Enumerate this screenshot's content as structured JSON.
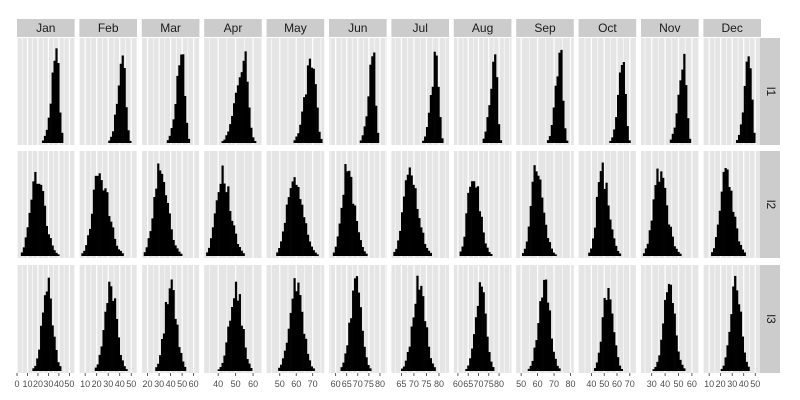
{
  "chart_data": {
    "type": "histogram-facet-grid",
    "title": "",
    "xlabel": "",
    "ylabel": "",
    "columns": [
      "Jan",
      "Feb",
      "Mar",
      "Apr",
      "May",
      "Jun",
      "Jul",
      "Aug",
      "Sep",
      "Oct",
      "Nov",
      "Dec"
    ],
    "rows": [
      "l1",
      "l2",
      "l3"
    ],
    "x_axes": [
      {
        "range": [
          0,
          55
        ],
        "ticks": [
          0,
          10,
          20,
          30,
          40,
          50
        ],
        "tick_labels": [
          "0",
          "10",
          "20",
          "30",
          "40",
          "50"
        ]
      },
      {
        "range": [
          5,
          55
        ],
        "ticks": [
          10,
          20,
          30,
          40,
          50
        ],
        "tick_labels": [
          "10",
          "20",
          "30",
          "40",
          "50"
        ]
      },
      {
        "range": [
          15,
          65
        ],
        "ticks": [
          20,
          30,
          40,
          50,
          60
        ],
        "tick_labels": [
          "20",
          "30",
          "40",
          "50",
          "60"
        ]
      },
      {
        "range": [
          32,
          65
        ],
        "ticks": [
          40,
          50,
          60
        ],
        "tick_labels": [
          "40",
          "50",
          "60"
        ]
      },
      {
        "range": [
          42,
          77
        ],
        "ticks": [
          50,
          60,
          70
        ],
        "tick_labels": [
          "50",
          "60",
          "70"
        ]
      },
      {
        "range": [
          57,
          83
        ],
        "ticks": [
          60,
          65,
          70,
          75,
          80
        ],
        "tick_labels": [
          "60",
          "65",
          "70",
          "75",
          "80"
        ]
      },
      {
        "range": [
          61,
          84
        ],
        "ticks": [
          65,
          70,
          75,
          80
        ],
        "tick_labels": [
          "65",
          "70",
          "75",
          "80"
        ]
      },
      {
        "range": [
          58,
          86
        ],
        "ticks": [
          60,
          65,
          70,
          75,
          80
        ],
        "tick_labels": [
          "60",
          "65",
          "70",
          "75",
          "80"
        ]
      },
      {
        "range": [
          47,
          82
        ],
        "ticks": [
          50,
          60,
          70,
          80
        ],
        "tick_labels": [
          "50",
          "60",
          "70",
          "80"
        ]
      },
      {
        "range": [
          30,
          75
        ],
        "ticks": [
          40,
          50,
          60,
          70
        ],
        "tick_labels": [
          "40",
          "50",
          "60",
          "70"
        ]
      },
      {
        "range": [
          22,
          65
        ],
        "ticks": [
          30,
          40,
          50,
          60
        ],
        "tick_labels": [
          "30",
          "40",
          "50",
          "60"
        ]
      },
      {
        "range": [
          5,
          55
        ],
        "ticks": [
          10,
          20,
          30,
          40,
          50
        ],
        "tick_labels": [
          "10",
          "20",
          "30",
          "40",
          "50"
        ]
      }
    ],
    "panels": {
      "l1": [
        {
          "center": 38,
          "sd": 3.5,
          "skew": -0.6
        },
        {
          "center": 43,
          "sd": 3.2,
          "skew": -0.6
        },
        {
          "center": 50,
          "sd": 3.4,
          "skew": -0.6
        },
        {
          "center": 55,
          "sd": 3.2,
          "skew": -0.6
        },
        {
          "center": 70,
          "sd": 3.0,
          "skew": -0.6
        },
        {
          "center": 77,
          "sd": 1.5,
          "skew": -0.6
        },
        {
          "center": 79,
          "sd": 1.4,
          "skew": -0.6
        },
        {
          "center": 78,
          "sd": 1.6,
          "skew": -0.6
        },
        {
          "center": 74,
          "sd": 2.1,
          "skew": -0.6
        },
        {
          "center": 65,
          "sd": 2.6,
          "skew": -0.6
        },
        {
          "center": 54,
          "sd": 2.7,
          "skew": -0.6
        },
        {
          "center": 45,
          "sd": 2.9,
          "skew": -0.6
        }
      ],
      "l2": [
        {
          "center": 18,
          "sd": 6.5,
          "skew": 0.3
        },
        {
          "center": 22,
          "sd": 6.5,
          "skew": 0.3
        },
        {
          "center": 30,
          "sd": 6.0,
          "skew": 0.3
        },
        {
          "center": 42,
          "sd": 4.0,
          "skew": 0.3
        },
        {
          "center": 58,
          "sd": 4.5,
          "skew": 0.3
        },
        {
          "center": 65,
          "sd": 2.8,
          "skew": 0.3
        },
        {
          "center": 68,
          "sd": 2.8,
          "skew": 0.3
        },
        {
          "center": 67,
          "sd": 2.8,
          "skew": 0.3
        },
        {
          "center": 59,
          "sd": 3.6,
          "skew": 0.3
        },
        {
          "center": 48,
          "sd": 4.5,
          "skew": 0.3
        },
        {
          "center": 35,
          "sd": 5.0,
          "skew": 0.3
        },
        {
          "center": 24,
          "sd": 5.5,
          "skew": 0.3
        }
      ],
      "l3": [
        {
          "center": 29,
          "sd": 5.0,
          "skew": 0
        },
        {
          "center": 32,
          "sd": 5.0,
          "skew": 0
        },
        {
          "center": 40,
          "sd": 5.0,
          "skew": 0
        },
        {
          "center": 50,
          "sd": 3.5,
          "skew": 0
        },
        {
          "center": 60,
          "sd": 4.0,
          "skew": 0
        },
        {
          "center": 69,
          "sd": 2.5,
          "skew": 0
        },
        {
          "center": 72,
          "sd": 2.5,
          "skew": 0
        },
        {
          "center": 71,
          "sd": 2.5,
          "skew": 0
        },
        {
          "center": 64,
          "sd": 3.5,
          "skew": 0
        },
        {
          "center": 53,
          "sd": 4.0,
          "skew": 0
        },
        {
          "center": 43,
          "sd": 4.2,
          "skew": 0
        },
        {
          "center": 33,
          "sd": 4.5,
          "skew": 0
        }
      ]
    },
    "grid": true,
    "legend": "none",
    "colors": {
      "panel_background": "#e5e5e5",
      "grid_line": "#ffffff",
      "strip_background": "#cccccc",
      "bar_fill": "#000000",
      "strip_text": "#1a1a1a",
      "tick_text": "#4d4d4d"
    }
  }
}
